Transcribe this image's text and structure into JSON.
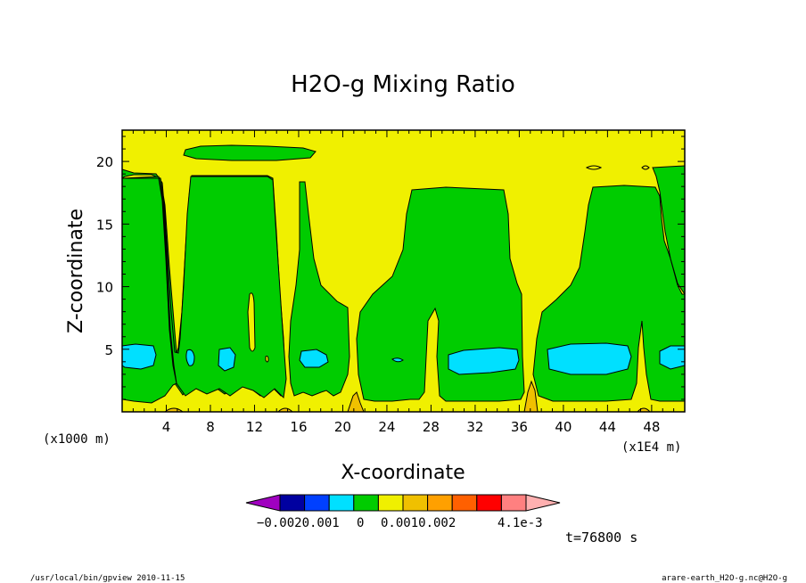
{
  "chart_data": {
    "type": "heatmap",
    "title": "H2O-g Mixing Ratio",
    "xlabel": "X-coordinate",
    "ylabel": "Z-coordinate",
    "x_unit_left": "(x1000 m)",
    "x_unit_right": "(x1E4 m)",
    "x_ticks": [
      "4",
      "8",
      "12",
      "16",
      "20",
      "24",
      "28",
      "32",
      "36",
      "40",
      "44",
      "48"
    ],
    "x_tick_values": [
      4,
      8,
      12,
      16,
      20,
      24,
      28,
      32,
      36,
      40,
      44,
      48
    ],
    "y_ticks": [
      "5",
      "10",
      "15",
      "20"
    ],
    "y_tick_values": [
      5,
      10,
      15,
      20
    ],
    "xlim": [
      0,
      51
    ],
    "ylim": [
      0,
      22.5
    ],
    "colorbar": {
      "colors": [
        "#a000c0",
        "#0000a0",
        "#0040ff",
        "#00e0ff",
        "#00cc00",
        "#f0f000",
        "#f0c000",
        "#ffa000",
        "#ff6000",
        "#ff0000",
        "#ff8080",
        "#ffb0b0"
      ],
      "labels": [
        "−0.0020.001",
        "0",
        "0.0010.002",
        "4.1e-3"
      ]
    },
    "regions": {
      "background_color": "#f0f000",
      "green_color": "#00cc00",
      "cyan_color": "#00e0ff",
      "orange_color": "#f0c000"
    },
    "time_label": "t=76800 s"
  },
  "footer": {
    "left": "/usr/local/bin/gpview  2010-11-15",
    "right": "arare-earth_H2O-g.nc@H2O-g"
  }
}
